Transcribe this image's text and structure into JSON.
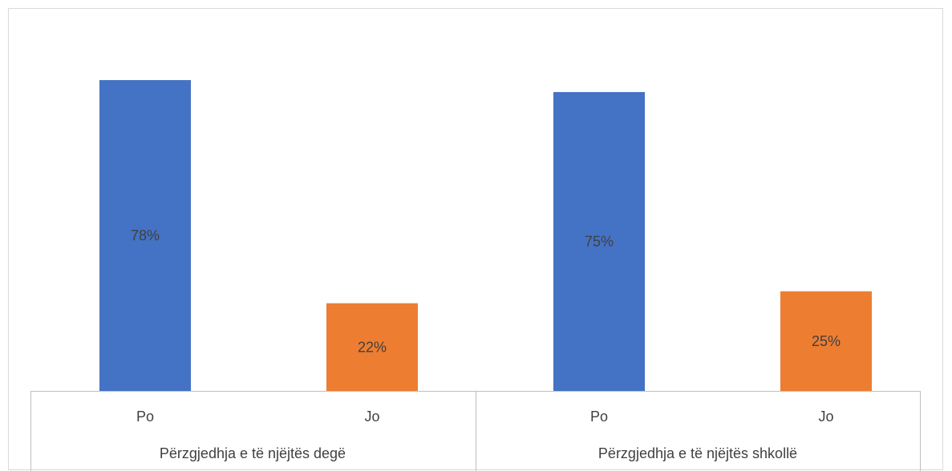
{
  "caption": "",
  "chart_data": {
    "type": "bar",
    "groups": [
      {
        "label": "Përzgjedhja e të njëjtës degë",
        "bars": [
          {
            "category": "Po",
            "value": 78,
            "label": "78%",
            "color": "#4472c4"
          },
          {
            "category": "Jo",
            "value": 22,
            "label": "22%",
            "color": "#ed7d31"
          }
        ]
      },
      {
        "label": "Përzgjedhja e të njëjtës shkollë",
        "bars": [
          {
            "category": "Po",
            "value": 75,
            "label": "75%",
            "color": "#4472c4"
          },
          {
            "category": "Jo",
            "value": 25,
            "label": "25%",
            "color": "#ed7d31"
          }
        ]
      }
    ],
    "ylim": [
      0,
      80
    ],
    "grid": false,
    "legend": false
  }
}
